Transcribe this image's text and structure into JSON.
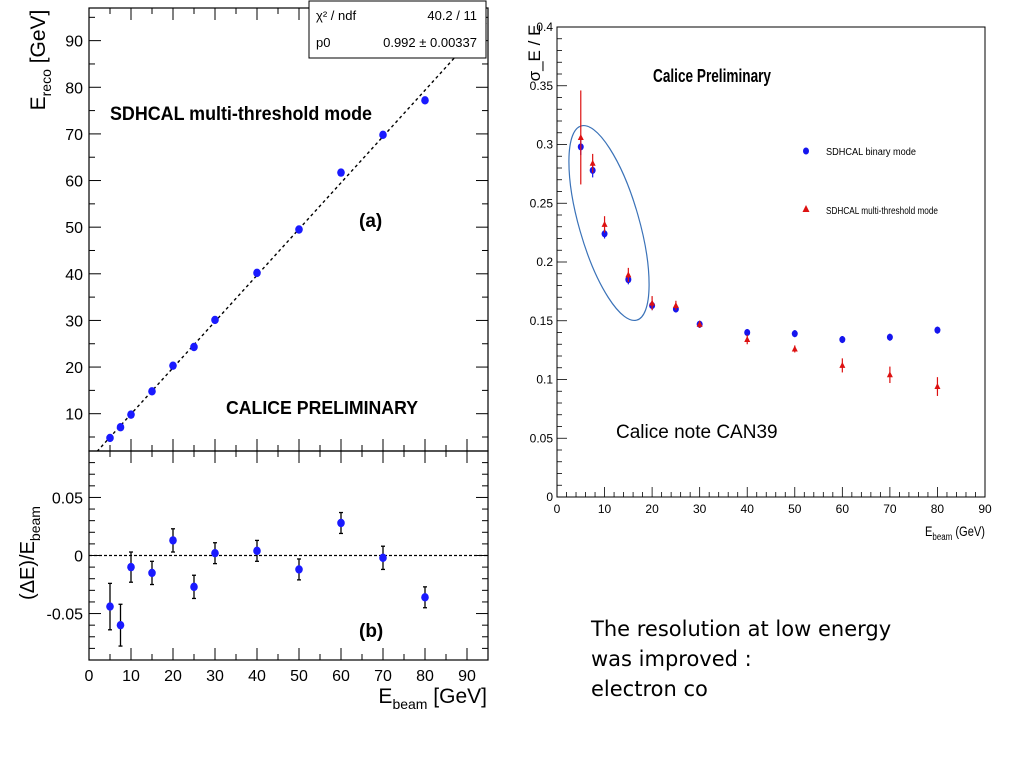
{
  "chart_data": [
    {
      "type": "scatter",
      "panel_label": "(a)",
      "title": "SDHCAL multi-threshold mode",
      "watermark": "CALICE PRELIMINARY",
      "ylabel": "E_reco [GeV]",
      "ylabel_main": "E",
      "ylabel_sub": "reco",
      "ylabel_unit": " [GeV]",
      "xlim": [
        0,
        95
      ],
      "ylim": [
        2,
        97
      ],
      "yticks": [
        "10",
        "20",
        "30",
        "40",
        "50",
        "60",
        "70",
        "80",
        "90"
      ],
      "fit": {
        "slope": 0.992,
        "stats": [
          {
            "label": "χ² / ndf",
            "value": "40.2 / 11"
          },
          {
            "label": "p0",
            "value": "0.992 ± 0.00337"
          }
        ]
      },
      "series": [
        {
          "color": "#1a1aff",
          "x": [
            5,
            7.5,
            10,
            15,
            20,
            25,
            30,
            40,
            50,
            60,
            70,
            80
          ],
          "y": [
            4.8,
            7.1,
            9.8,
            14.8,
            20.3,
            24.3,
            30.1,
            40.2,
            49.5,
            61.7,
            69.8,
            77.2
          ]
        }
      ]
    },
    {
      "type": "scatter",
      "panel_label": "(b)",
      "xlabel": "E_beam [GeV]",
      "xlabel_main": "E",
      "xlabel_sub": "beam",
      "xlabel_unit": " [GeV]",
      "ylabel": "(ΔE)/E_beam",
      "ylabel_main": "(ΔE)/E",
      "ylabel_sub": "beam",
      "xlim": [
        0,
        95
      ],
      "ylim": [
        -0.09,
        0.09
      ],
      "xticks": [
        "0",
        "10",
        "20",
        "30",
        "40",
        "50",
        "60",
        "70",
        "80",
        "90"
      ],
      "yticks": [
        "-0.05",
        "0",
        "0.05"
      ],
      "series": [
        {
          "color": "#1a1aff",
          "x": [
            5,
            7.5,
            10,
            15,
            20,
            25,
            30,
            40,
            50,
            60,
            70,
            80
          ],
          "y": [
            -0.044,
            -0.06,
            -0.01,
            -0.015,
            0.013,
            -0.027,
            0.002,
            0.004,
            -0.012,
            0.028,
            -0.002,
            -0.036
          ],
          "err": [
            0.02,
            0.018,
            0.013,
            0.01,
            0.01,
            0.01,
            0.009,
            0.009,
            0.009,
            0.009,
            0.01,
            0.009
          ]
        }
      ]
    },
    {
      "type": "scatter",
      "title": "Calice Preliminary",
      "annotation": "Calice note CAN39",
      "ylabel": "σ_E / E",
      "xlabel": "E_beam (GeV)",
      "xlabel_main": "E",
      "xlabel_sub": "beam",
      "xlabel_unit": " (GeV)",
      "xlim": [
        0,
        90
      ],
      "ylim": [
        0,
        0.4
      ],
      "xticks": [
        "0",
        "10",
        "20",
        "30",
        "40",
        "50",
        "60",
        "70",
        "80",
        "90"
      ],
      "yticks": [
        "0",
        "0.05",
        "0.1",
        "0.15",
        "0.2",
        "0.25",
        "0.3",
        "0.35",
        "0.4"
      ],
      "legend_position": "right",
      "series": [
        {
          "name": "SDHCAL binary mode",
          "marker": "circle",
          "color": "#1515ee",
          "x": [
            5,
            7.5,
            10,
            15,
            20,
            25,
            30,
            40,
            50,
            60,
            70,
            80
          ],
          "y": [
            0.298,
            0.278,
            0.224,
            0.185,
            0.163,
            0.16,
            0.147,
            0.14,
            0.139,
            0.134,
            0.136,
            0.142
          ],
          "err": [
            0.007,
            0.006,
            0.004,
            0.004,
            0.004,
            0.003,
            0.003,
            0.003,
            0.003,
            0.003,
            0.003,
            0.003
          ]
        },
        {
          "name": "SDHCAL multi-threshold mode",
          "marker": "triangle",
          "color": "#dd1111",
          "x": [
            5,
            7.5,
            10,
            15,
            20,
            25,
            30,
            40,
            50,
            60,
            70,
            80
          ],
          "y": [
            0.306,
            0.284,
            0.232,
            0.189,
            0.165,
            0.163,
            0.147,
            0.134,
            0.126,
            0.112,
            0.104,
            0.094
          ],
          "err": [
            0.04,
            0.008,
            0.007,
            0.006,
            0.006,
            0.004,
            0.003,
            0.004,
            0.003,
            0.006,
            0.007,
            0.008
          ]
        }
      ]
    }
  ],
  "notes": {
    "line1": "The resolution at low  energy",
    "line2": "was improved :",
    "line3": "electron co"
  }
}
